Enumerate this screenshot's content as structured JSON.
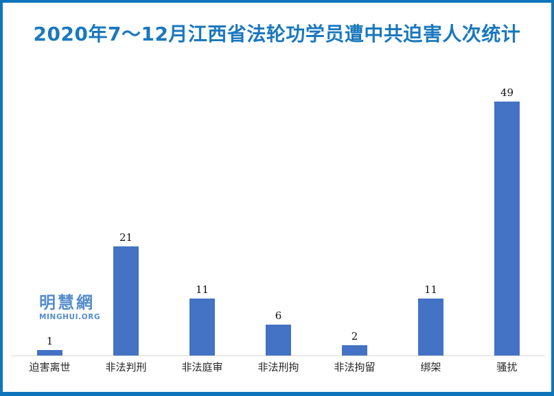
{
  "title": "2020年7～12月江西省法轮功学员遭中共迫害人次统计",
  "watermark": {
    "cn": "明慧網",
    "en": "MINGHUI.ORG"
  },
  "colors": {
    "bar": "#4472C4",
    "frame_border": "#0E75BB",
    "title_text": "#1A78BE",
    "axis_line": "#D9D9D9",
    "value_label": "#111111",
    "category_label": "#262626",
    "watermark": "#3E7DC4",
    "background": "#FFFFFF"
  },
  "chart_data": {
    "type": "bar",
    "title": "2020年7～12月江西省法轮功学员遭中共迫害人次统计",
    "categories": [
      "迫害离世",
      "非法判刑",
      "非法庭审",
      "非法刑拘",
      "非法拘留",
      "绑架",
      "骚扰"
    ],
    "values": [
      1,
      21,
      11,
      6,
      2,
      11,
      49
    ],
    "xlabel": "",
    "ylabel": "",
    "ylim": [
      0,
      49
    ],
    "grid": false,
    "legend": false,
    "data_labels": true,
    "bar_color": "#4472C4"
  }
}
